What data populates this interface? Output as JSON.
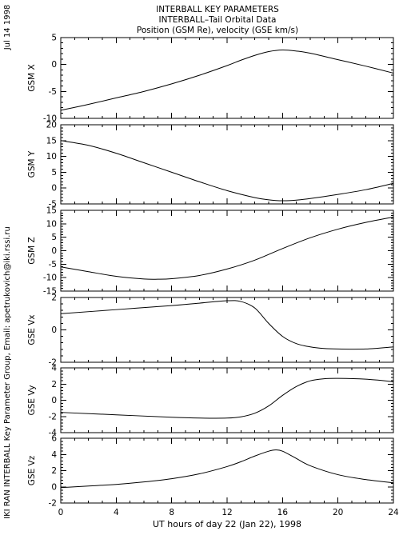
{
  "header": {
    "date_stamp": "Jul 14 1998",
    "side_note": "IKI RAN INTERBALL Key Parameter Group, Email: apetrukovich@iki.rssi.ru"
  },
  "chart_data": {
    "type": "line",
    "title": "INTERBALL KEY PARAMETERS",
    "subtitle": "INTERBALL–Tail Orbital Data",
    "subtitle2": "Position (GSM Re), velocity (GSE km/s)",
    "xlabel": "UT hours of day  22 (Jan 22), 1998",
    "xlim": [
      0,
      24
    ],
    "xticks": [
      0,
      4,
      8,
      12,
      16,
      20,
      24
    ],
    "line_color": "#000000",
    "panels": [
      {
        "ylabel": "GSM X",
        "ylim": [
          -10,
          5
        ],
        "yticks": [
          -10,
          -5,
          0,
          5
        ],
        "x": [
          0,
          2,
          4,
          6,
          8,
          10,
          12,
          13,
          14,
          15,
          16,
          17,
          18,
          20,
          22,
          24
        ],
        "y": [
          -8.5,
          -7.4,
          -6.2,
          -5.0,
          -3.6,
          -2.0,
          -0.2,
          0.8,
          1.7,
          2.4,
          2.7,
          2.5,
          2.1,
          0.9,
          -0.3,
          -1.6
        ]
      },
      {
        "ylabel": "GSM Y",
        "ylim": [
          -5,
          20
        ],
        "yticks": [
          -5,
          0,
          5,
          10,
          15,
          20
        ],
        "x": [
          0,
          2,
          4,
          6,
          8,
          10,
          12,
          14,
          15,
          16,
          17,
          18,
          20,
          22,
          24
        ],
        "y": [
          15.0,
          13.5,
          11.0,
          8.0,
          5.0,
          2.0,
          -0.8,
          -3.0,
          -3.7,
          -4.0,
          -3.8,
          -3.3,
          -2.0,
          -0.5,
          1.5
        ]
      },
      {
        "ylabel": "GSM Z",
        "ylim": [
          -15,
          15
        ],
        "yticks": [
          -15,
          -10,
          -5,
          0,
          5,
          10,
          15
        ],
        "x": [
          0,
          2,
          4,
          6,
          7,
          8,
          10,
          12,
          14,
          16,
          18,
          20,
          22,
          24
        ],
        "y": [
          -6.0,
          -7.8,
          -9.5,
          -10.5,
          -10.6,
          -10.4,
          -9.2,
          -6.8,
          -3.5,
          0.8,
          4.8,
          8.0,
          10.5,
          12.5
        ]
      },
      {
        "ylabel": "GSE Vx",
        "ylim": [
          -2,
          2
        ],
        "yticks": [
          -2,
          0,
          2
        ],
        "x": [
          0,
          4,
          8,
          10,
          12,
          13,
          14,
          15,
          16,
          17,
          18,
          19,
          20,
          22,
          24
        ],
        "y": [
          1.0,
          1.25,
          1.5,
          1.65,
          1.8,
          1.75,
          1.35,
          0.4,
          -0.4,
          -0.85,
          -1.05,
          -1.15,
          -1.18,
          -1.18,
          -1.05
        ]
      },
      {
        "ylabel": "GSE Vy",
        "ylim": [
          -4,
          4
        ],
        "yticks": [
          -4,
          -2,
          0,
          2,
          4
        ],
        "x": [
          0,
          4,
          8,
          10,
          12,
          13,
          14,
          15,
          16,
          17,
          18,
          19,
          20,
          22,
          24
        ],
        "y": [
          -1.5,
          -1.8,
          -2.1,
          -2.2,
          -2.2,
          -2.05,
          -1.6,
          -0.7,
          0.6,
          1.7,
          2.4,
          2.65,
          2.7,
          2.6,
          2.3
        ]
      },
      {
        "ylabel": "GSE Vz",
        "ylim": [
          -2,
          6
        ],
        "yticks": [
          -2,
          0,
          2,
          4,
          6
        ],
        "x": [
          0,
          2,
          4,
          6,
          8,
          10,
          12,
          13,
          14,
          15,
          15.5,
          16,
          17,
          18,
          20,
          22,
          24
        ],
        "y": [
          -0.1,
          0.1,
          0.3,
          0.6,
          1.0,
          1.6,
          2.5,
          3.1,
          3.8,
          4.4,
          4.55,
          4.4,
          3.5,
          2.6,
          1.5,
          0.9,
          0.5
        ]
      }
    ]
  }
}
